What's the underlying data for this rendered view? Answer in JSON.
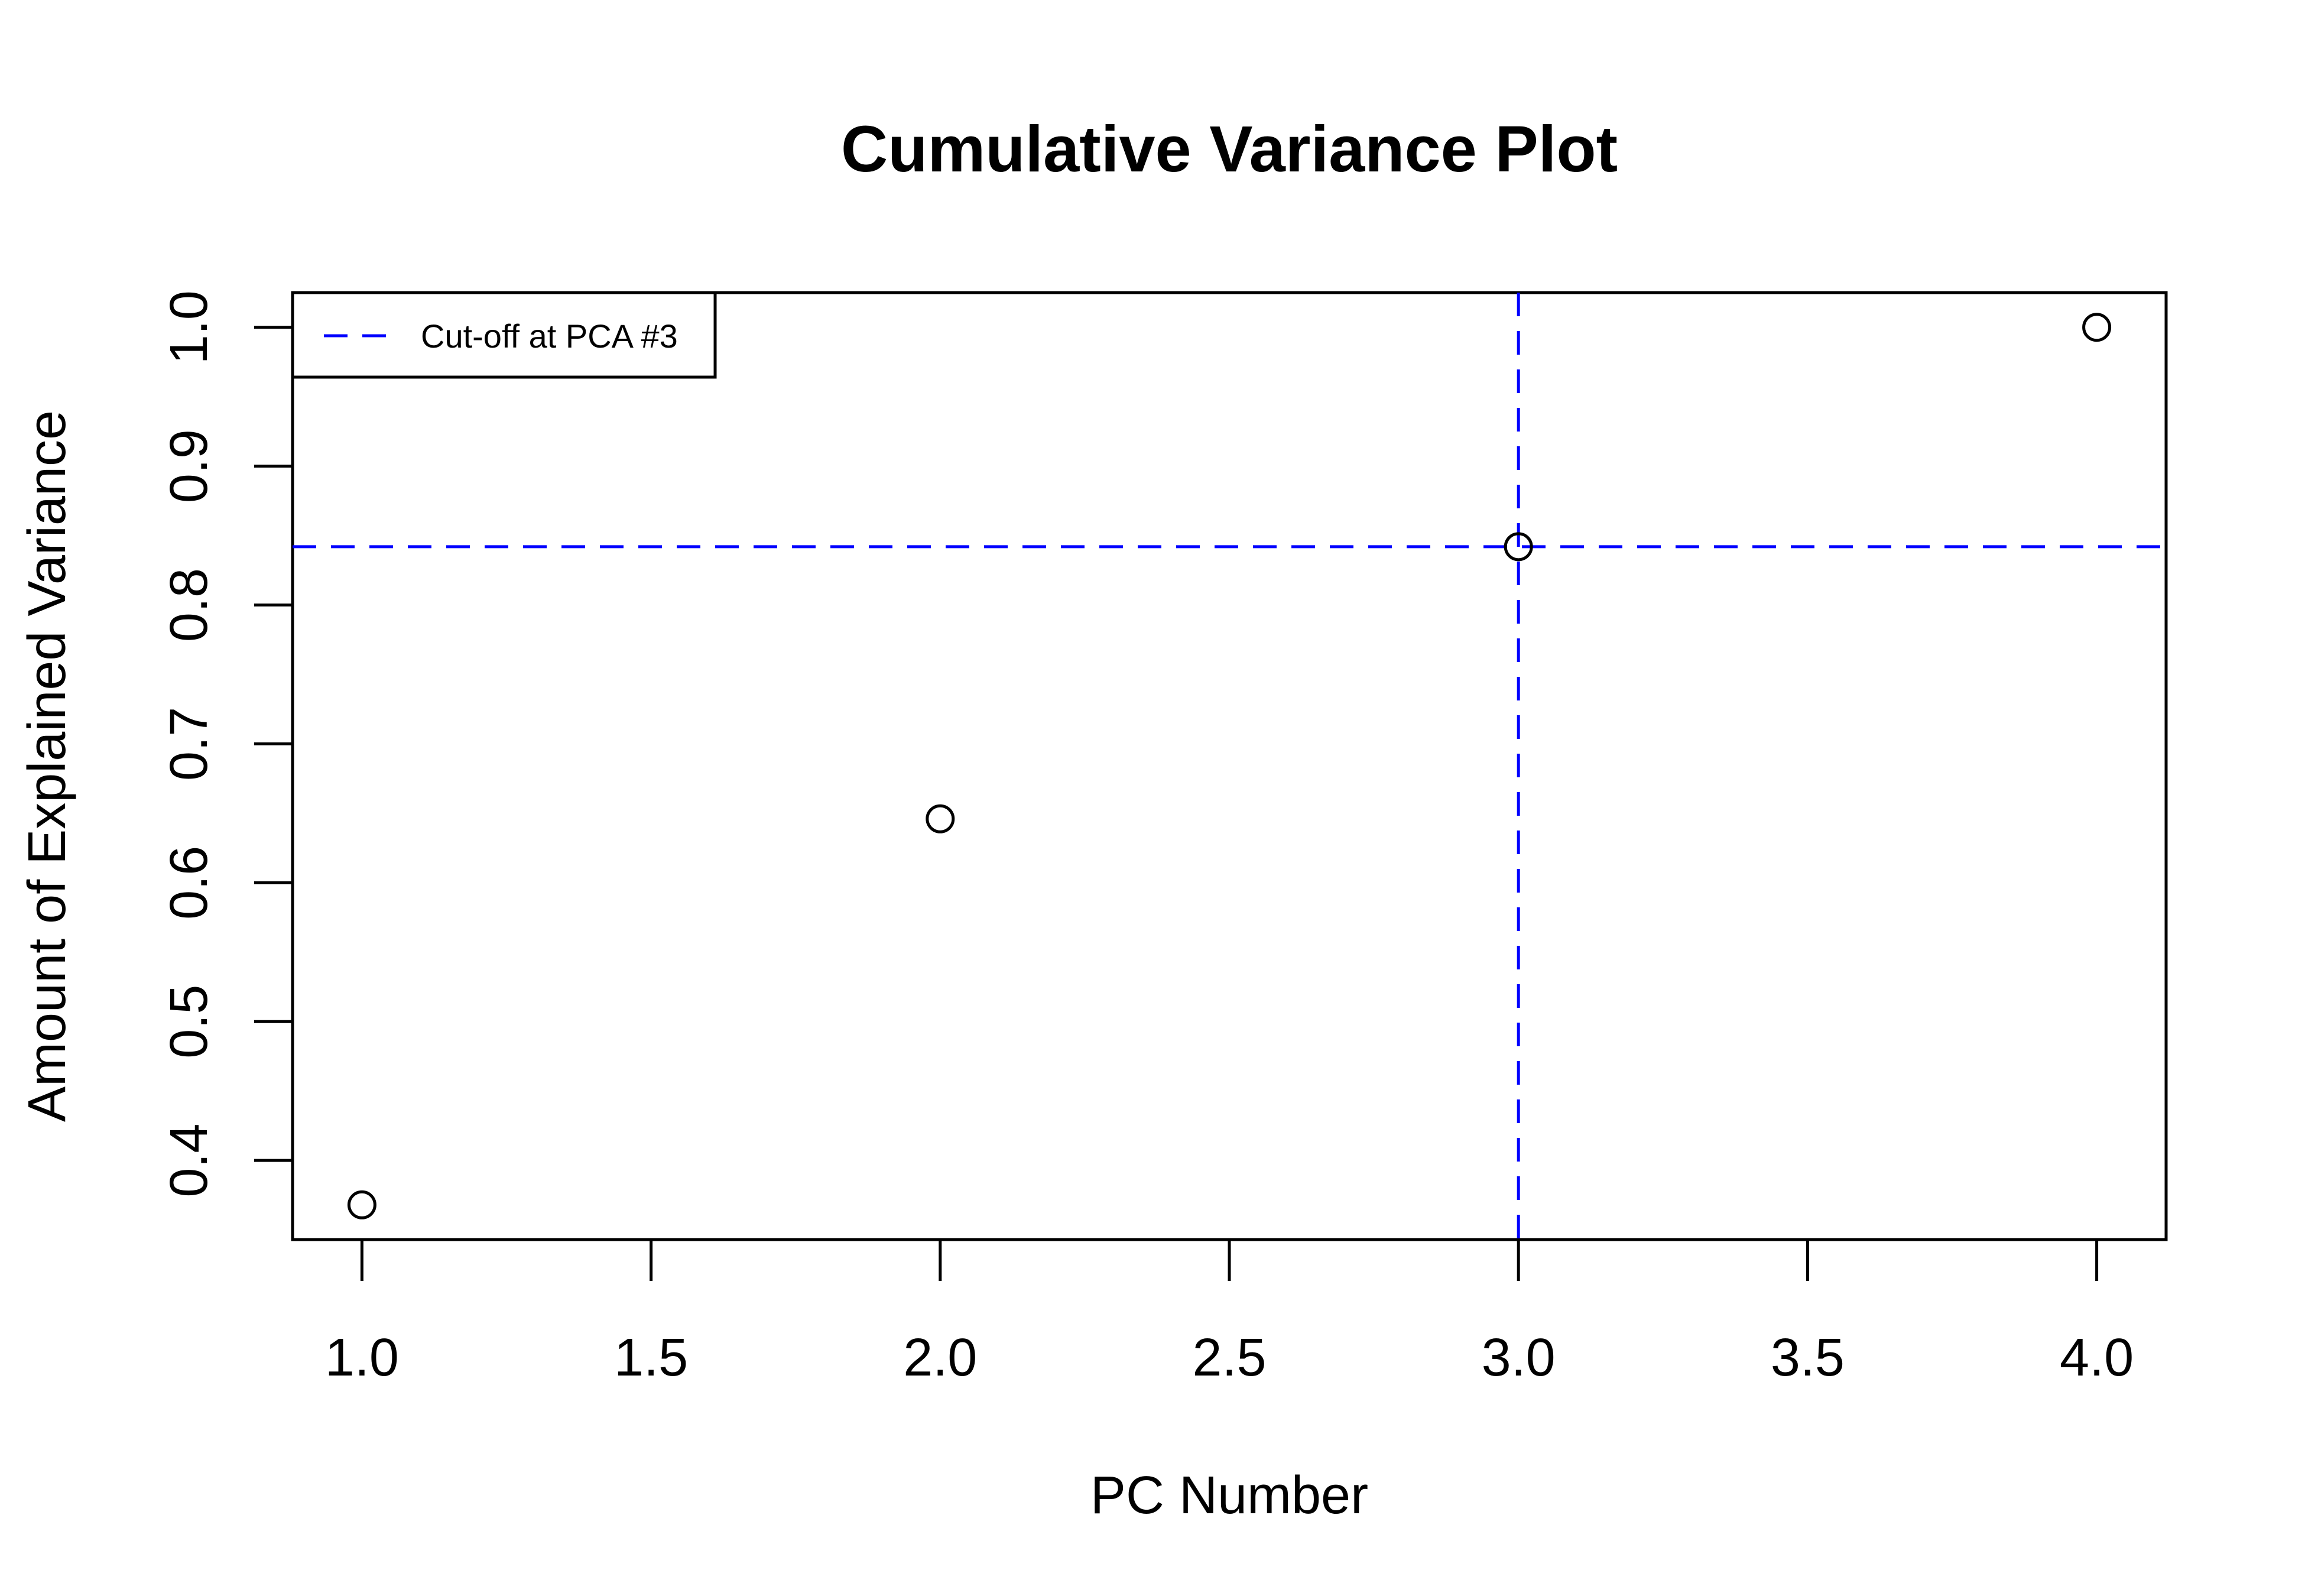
{
  "chart_data": {
    "type": "scatter",
    "title": "Cumulative Variance Plot",
    "xlabel": "PC Number",
    "ylabel": "Amount of Explained Variance",
    "x": [
      1,
      2,
      3,
      4
    ],
    "y": [
      0.368,
      0.646,
      0.842,
      1.0
    ],
    "xlim": [
      0.88,
      4.12
    ],
    "ylim": [
      0.343,
      1.025
    ],
    "xticks": [
      "1.0",
      "1.5",
      "2.0",
      "2.5",
      "3.0",
      "3.5",
      "4.0"
    ],
    "yticks": [
      "0.4",
      "0.5",
      "0.6",
      "0.7",
      "0.8",
      "0.9",
      "1.0"
    ],
    "grid": false,
    "reference_lines": {
      "vertical_x": 3,
      "horizontal_y": 0.842,
      "color": "#0000ff",
      "style": "dashed"
    },
    "legend": {
      "position": "top-left",
      "entries": [
        {
          "label": "Cut-off at PCA #3",
          "color": "#0000ff",
          "style": "dashed"
        }
      ]
    }
  }
}
